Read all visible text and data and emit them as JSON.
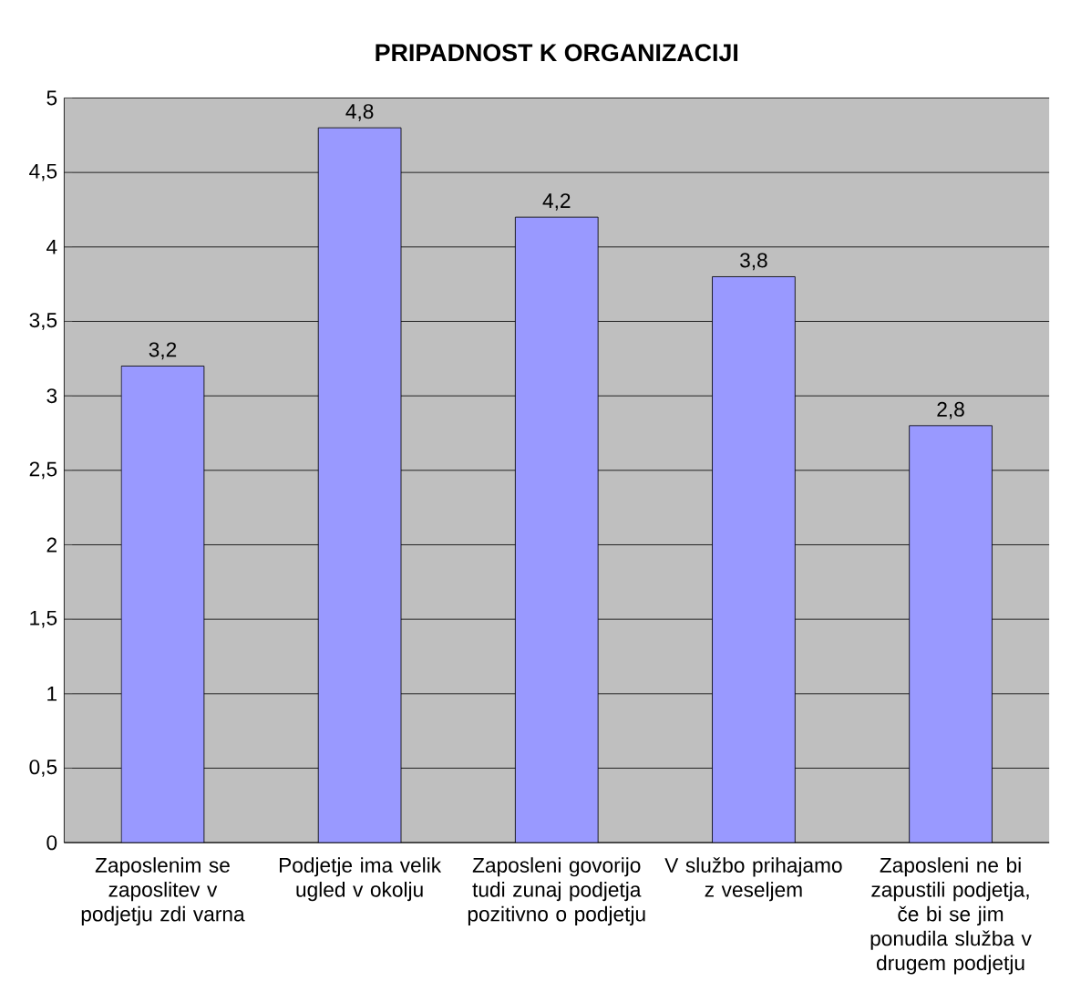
{
  "chart_data": {
    "type": "bar",
    "title": "PRIPADNOST K ORGANIZACIJI",
    "categories": [
      "Zaposlenim se zaposlitev v podjetju zdi varna",
      "Podjetje ima velik ugled v okolju",
      "Zaposleni govorijo tudi zunaj podjetja pozitivno o podjetju",
      "V službo prihajamo z veseljem",
      "Zaposleni ne bi zapustili podjetja, če bi se jim ponudila služba v drugem podjetju"
    ],
    "values": [
      3.2,
      4.8,
      4.2,
      3.8,
      2.8
    ],
    "value_labels": [
      "3,2",
      "4,8",
      "4,2",
      "3,8",
      "2,8"
    ],
    "color": "#9999ff",
    "ylim": [
      0,
      5
    ],
    "yticks": [
      0,
      {
        "value": 0.5,
        "label": "0,5"
      },
      1,
      {
        "value": 1.5,
        "label": "1,5"
      },
      2,
      {
        "value": 2.5,
        "label": "2,5"
      },
      3,
      {
        "value": 3.5,
        "label": "3,5"
      },
      4,
      {
        "value": 4.5,
        "label": "4,5"
      },
      5
    ],
    "grid": "y"
  }
}
